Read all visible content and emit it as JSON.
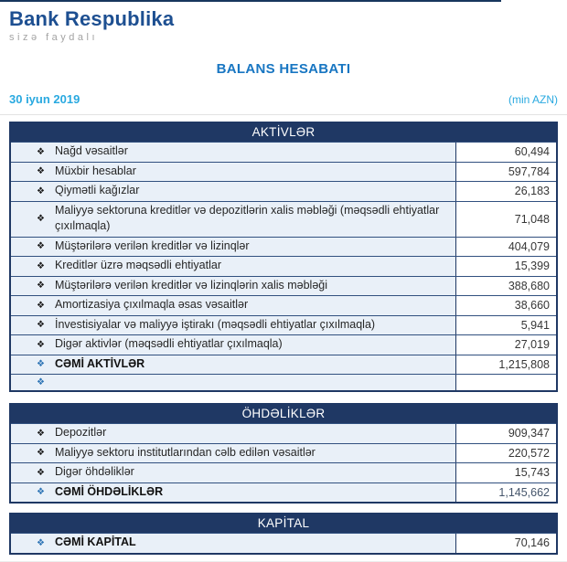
{
  "brand": {
    "name": "Bank Respublika",
    "tagline": "sizə faydalı"
  },
  "page": {
    "title": "BALANS HESABATI",
    "date": "30 iyun 2019",
    "unit_note": "(min AZN)"
  },
  "icons": {
    "bullet": "❖"
  },
  "colors": {
    "header_bg": "#1F3864",
    "brand_blue": "#1D4F91",
    "title_blue": "#1876C2",
    "cyan": "#29A9E0",
    "row_bg": "#E9F0F8",
    "total_bullet_blue": "#2E74B5",
    "total_value_blue": "#44546A"
  },
  "tables": [
    {
      "header": "AKTİVLƏR",
      "rows": [
        {
          "label": "Nağd vəsaitlər",
          "value": "60,494"
        },
        {
          "label": "Müxbir hesablar",
          "value": "597,784"
        },
        {
          "label": "Qiymətli kağızlar",
          "value": "26,183"
        },
        {
          "label": "Maliyyə sektoruna kreditlər və depozitlərin xalis məbləği (məqsədli ehtiyatlar çıxılmaqla)",
          "value": "71,048"
        },
        {
          "label": "Müştərilərə verilən kreditlər və lizinqlər",
          "value": "404,079"
        },
        {
          "label": "Kreditlər üzrə məqsədli ehtiyatlar",
          "value": "15,399"
        },
        {
          "label": "Müştərilərə verilən kreditlər və lizinqlərin xalis məbləği",
          "value": "388,680"
        },
        {
          "label": "Amortizasiya çıxılmaqla əsas vəsaitlər",
          "value": "38,660"
        },
        {
          "label": "İnvestisiyalar və maliyyə iştirakı (məqsədli ehtiyatlar çıxılmaqla)",
          "value": "5,941"
        },
        {
          "label": "Digər aktivlər (məqsədli ehtiyatlar çıxılmaqla)",
          "value": "27,019"
        },
        {
          "label": "CƏMİ AKTİVLƏR",
          "value": "1,215,808",
          "emphasis": true
        },
        {
          "label": "",
          "value": "",
          "emphasis": true
        }
      ]
    },
    {
      "header": "ÖHDƏLİKLƏR",
      "rows": [
        {
          "label": "Depozitlər",
          "value": "909,347"
        },
        {
          "label": "Maliyyə sektoru institutlarından cəlb edilən vəsaitlər",
          "value": "220,572"
        },
        {
          "label": "Digər öhdəliklər",
          "value": "15,743"
        },
        {
          "label": "CƏMİ ÖHDƏLİKLƏR",
          "value": "1,145,662",
          "emphasis": true,
          "value_blue": true
        }
      ]
    },
    {
      "header": "KAPİTAL",
      "rows": [
        {
          "label": "CƏMİ KAPİTAL",
          "value": "70,146",
          "emphasis": true
        }
      ]
    }
  ]
}
